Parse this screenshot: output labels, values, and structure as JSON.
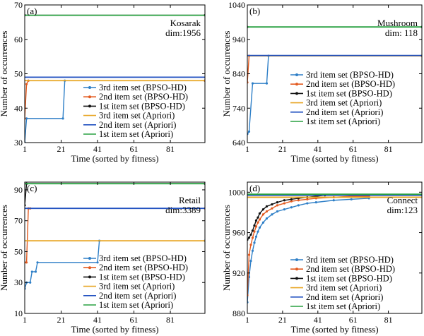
{
  "chart_data": [
    {
      "type": "line",
      "panel_label": "(a)",
      "annotation": [
        "Kosarak",
        "dim:1956"
      ],
      "xlabel": "Time (sorted by fitness)",
      "ylabel": "Number of occurrences",
      "xlim": [
        1,
        100
      ],
      "ylim": [
        30,
        70
      ],
      "xticks": [
        1,
        21,
        41,
        61,
        81
      ],
      "yticks": [
        30,
        40,
        50,
        60,
        70
      ],
      "legend_position": "lower-right",
      "series": [
        {
          "name": "3rd item set (BPSO-HD)",
          "color": "#2e7fc7",
          "marker": true,
          "x": [
            1,
            2,
            22,
            23,
            100
          ],
          "y": [
            30,
            37,
            37,
            48,
            48
          ]
        },
        {
          "name": "2nd item set (BPSO-HD)",
          "color": "#e35b20",
          "marker": true,
          "x": [
            1,
            2,
            3,
            100
          ],
          "y": [
            37,
            47,
            48,
            48
          ]
        },
        {
          "name": "1st item set (BPSO-HD)",
          "color": "#111111",
          "marker": true,
          "x": [
            1,
            100
          ],
          "y": [
            67,
            67
          ]
        },
        {
          "name": "3rd item set (Apriori)",
          "color": "#e8a625",
          "marker": false,
          "x": [
            1,
            100
          ],
          "y": [
            48,
            48
          ]
        },
        {
          "name": "2nd item set (Apriori)",
          "color": "#2050c0",
          "marker": false,
          "x": [
            1,
            100
          ],
          "y": [
            49,
            49
          ]
        },
        {
          "name": "1st item set (Apriori)",
          "color": "#28a040",
          "marker": false,
          "x": [
            1,
            100
          ],
          "y": [
            67,
            67
          ]
        }
      ]
    },
    {
      "type": "line",
      "panel_label": "(b)",
      "annotation": [
        "Mushroom",
        "dim: 118"
      ],
      "xlabel": "Time (sorted by fitness)",
      "ylabel": "Number of occurrences",
      "xlim": [
        1,
        100
      ],
      "ylim": [
        640,
        1040
      ],
      "xticks": [
        1,
        21,
        41,
        61,
        81
      ],
      "yticks": [
        640,
        740,
        840,
        940,
        1040
      ],
      "legend_position": "center-right",
      "series": [
        {
          "name": "3rd item set (BPSO-HD)",
          "color": "#2e7fc7",
          "marker": true,
          "x": [
            1,
            2,
            4,
            12,
            13,
            100
          ],
          "y": [
            665,
            672,
            812,
            812,
            892,
            892
          ]
        },
        {
          "name": "2nd item set (BPSO-HD)",
          "color": "#e35b20",
          "marker": true,
          "x": [
            1,
            2,
            100
          ],
          "y": [
            815,
            892,
            892
          ]
        },
        {
          "name": "1st item set (BPSO-HD)",
          "color": "#111111",
          "marker": true,
          "x": [
            1,
            100
          ],
          "y": [
            976,
            976
          ]
        },
        {
          "name": "3rd item set (Apriori)",
          "color": "#e8a625",
          "marker": false,
          "x": [
            1,
            100
          ],
          "y": [
            892,
            892
          ]
        },
        {
          "name": "2nd item set (Apriori)",
          "color": "#2050c0",
          "marker": false,
          "x": [
            1,
            100
          ],
          "y": [
            893,
            893
          ]
        },
        {
          "name": "1st item set (Apriori)",
          "color": "#28a040",
          "marker": false,
          "x": [
            1,
            100
          ],
          "y": [
            976,
            976
          ]
        }
      ]
    },
    {
      "type": "line",
      "panel_label": "(c)",
      "annotation": [
        "Retail",
        "dim:3389"
      ],
      "xlabel": "Time (sorted by fitness)",
      "ylabel": "Number of occurrences",
      "xlim": [
        1,
        100
      ],
      "ylim": [
        10,
        95
      ],
      "xticks": [
        1,
        21,
        41,
        61,
        81
      ],
      "yticks": [
        10,
        30,
        50,
        70,
        90
      ],
      "legend_position": "lower-right",
      "series": [
        {
          "name": "3rd item set (BPSO-HD)",
          "color": "#2e7fc7",
          "marker": true,
          "x": [
            1,
            2,
            4,
            5,
            7,
            8,
            41,
            42,
            100
          ],
          "y": [
            26,
            30,
            30,
            37,
            37,
            43,
            43,
            57,
            57
          ]
        },
        {
          "name": "2nd item set (BPSO-HD)",
          "color": "#e35b20",
          "marker": true,
          "x": [
            1,
            2,
            3,
            4,
            100
          ],
          "y": [
            43,
            43,
            78,
            78,
            78
          ]
        },
        {
          "name": "1st item set (BPSO-HD)",
          "color": "#111111",
          "marker": true,
          "x": [
            1,
            2,
            100
          ],
          "y": [
            80,
            94,
            94
          ]
        },
        {
          "name": "3rd item set (Apriori)",
          "color": "#e8a625",
          "marker": false,
          "x": [
            1,
            100
          ],
          "y": [
            57,
            57
          ]
        },
        {
          "name": "2nd item set (Apriori)",
          "color": "#2050c0",
          "marker": false,
          "x": [
            1,
            100
          ],
          "y": [
            78,
            78
          ]
        },
        {
          "name": "1st item set (Apriori)",
          "color": "#28a040",
          "marker": false,
          "x": [
            1,
            100
          ],
          "y": [
            94,
            94
          ]
        }
      ]
    },
    {
      "type": "line",
      "panel_label": "(d)",
      "annotation": [
        "Connect",
        "dim:123"
      ],
      "xlabel": "Time (sorted by fitness)",
      "ylabel": "Number of occurrences",
      "xlim": [
        1,
        100
      ],
      "ylim": [
        880,
        1010
      ],
      "xticks": [
        1,
        21,
        41,
        61,
        81
      ],
      "yticks": [
        880,
        920,
        960,
        1000
      ],
      "legend_position": "lower-right",
      "series": [
        {
          "name": "3rd item set (BPSO-HD)",
          "color": "#2e7fc7",
          "marker": true,
          "x": [
            1,
            2,
            3,
            4,
            5,
            6,
            7,
            8,
            10,
            12,
            15,
            18,
            22,
            26,
            30,
            35,
            40,
            50,
            60,
            70
          ],
          "y": [
            891,
            916,
            932,
            942,
            950,
            956,
            961,
            965,
            970,
            974,
            978,
            981,
            983,
            985,
            987,
            989,
            990,
            992,
            993,
            994
          ]
        },
        {
          "name": "2nd item set (BPSO-HD)",
          "color": "#e35b20",
          "marker": true,
          "x": [
            1,
            2,
            3,
            4,
            5,
            6,
            7,
            8,
            10,
            12,
            15,
            18,
            22,
            26,
            30,
            35,
            40,
            50,
            60,
            70
          ],
          "y": [
            898,
            938,
            948,
            955,
            961,
            966,
            970,
            973,
            978,
            981,
            984,
            987,
            989,
            991,
            992,
            993,
            994,
            995,
            996,
            996
          ]
        },
        {
          "name": "1st item set (BPSO-HD)",
          "color": "#111111",
          "marker": true,
          "x": [
            1,
            2,
            3,
            4,
            5,
            6,
            7,
            8,
            10,
            12,
            15,
            18,
            22,
            26,
            30,
            35,
            40,
            45
          ],
          "y": [
            953,
            955,
            958,
            962,
            967,
            972,
            975,
            979,
            983,
            986,
            988,
            990,
            992,
            993,
            994,
            995,
            996,
            997
          ]
        },
        {
          "name": "3rd item set (Apriori)",
          "color": "#e8a625",
          "marker": false,
          "x": [
            1,
            100
          ],
          "y": [
            995,
            995
          ]
        },
        {
          "name": "2nd item set (Apriori)",
          "color": "#2050c0",
          "marker": false,
          "x": [
            1,
            100
          ],
          "y": [
            997,
            997
          ]
        },
        {
          "name": "1st item set (Apriori)",
          "color": "#28a040",
          "marker": false,
          "x": [
            1,
            100
          ],
          "y": [
            998,
            998
          ]
        }
      ]
    }
  ]
}
